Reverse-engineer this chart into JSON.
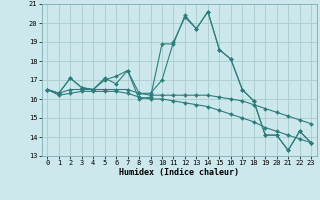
{
  "xlabel": "Humidex (Indice chaleur)",
  "background_color": "#cce8ec",
  "grid_color": "#aacccc",
  "line_color": "#2e7d7d",
  "xlim": [
    -0.5,
    23.5
  ],
  "ylim": [
    13,
    21
  ],
  "yticks": [
    13,
    14,
    15,
    16,
    17,
    18,
    19,
    20,
    21
  ],
  "xticks": [
    0,
    1,
    2,
    3,
    4,
    5,
    6,
    7,
    8,
    9,
    10,
    11,
    12,
    13,
    14,
    15,
    16,
    17,
    18,
    19,
    20,
    21,
    22,
    23
  ],
  "series": [
    [
      16.5,
      16.3,
      17.1,
      16.6,
      16.5,
      17.1,
      16.8,
      17.5,
      16.0,
      16.1,
      18.9,
      18.9,
      20.4,
      19.7,
      20.6,
      18.6,
      18.1,
      16.5,
      15.9,
      14.1,
      14.1,
      13.3,
      14.3,
      13.7
    ],
    [
      16.5,
      16.3,
      17.1,
      16.6,
      16.5,
      17.0,
      17.2,
      17.5,
      16.3,
      16.3,
      17.0,
      19.0,
      20.3,
      19.7,
      20.6,
      18.6,
      18.1,
      16.5,
      15.9,
      14.1,
      14.1,
      13.3,
      14.3,
      13.7
    ],
    [
      16.5,
      16.3,
      16.5,
      16.5,
      16.5,
      16.5,
      16.5,
      16.5,
      16.3,
      16.2,
      16.2,
      16.2,
      16.2,
      16.2,
      16.2,
      16.1,
      16.0,
      15.9,
      15.7,
      15.5,
      15.3,
      15.1,
      14.9,
      14.7
    ],
    [
      16.5,
      16.2,
      16.3,
      16.4,
      16.4,
      16.4,
      16.4,
      16.3,
      16.1,
      16.0,
      16.0,
      15.9,
      15.8,
      15.7,
      15.6,
      15.4,
      15.2,
      15.0,
      14.8,
      14.5,
      14.3,
      14.1,
      13.9,
      13.7
    ]
  ],
  "xlabel_fontsize": 6.0,
  "tick_fontsize": 5.0
}
